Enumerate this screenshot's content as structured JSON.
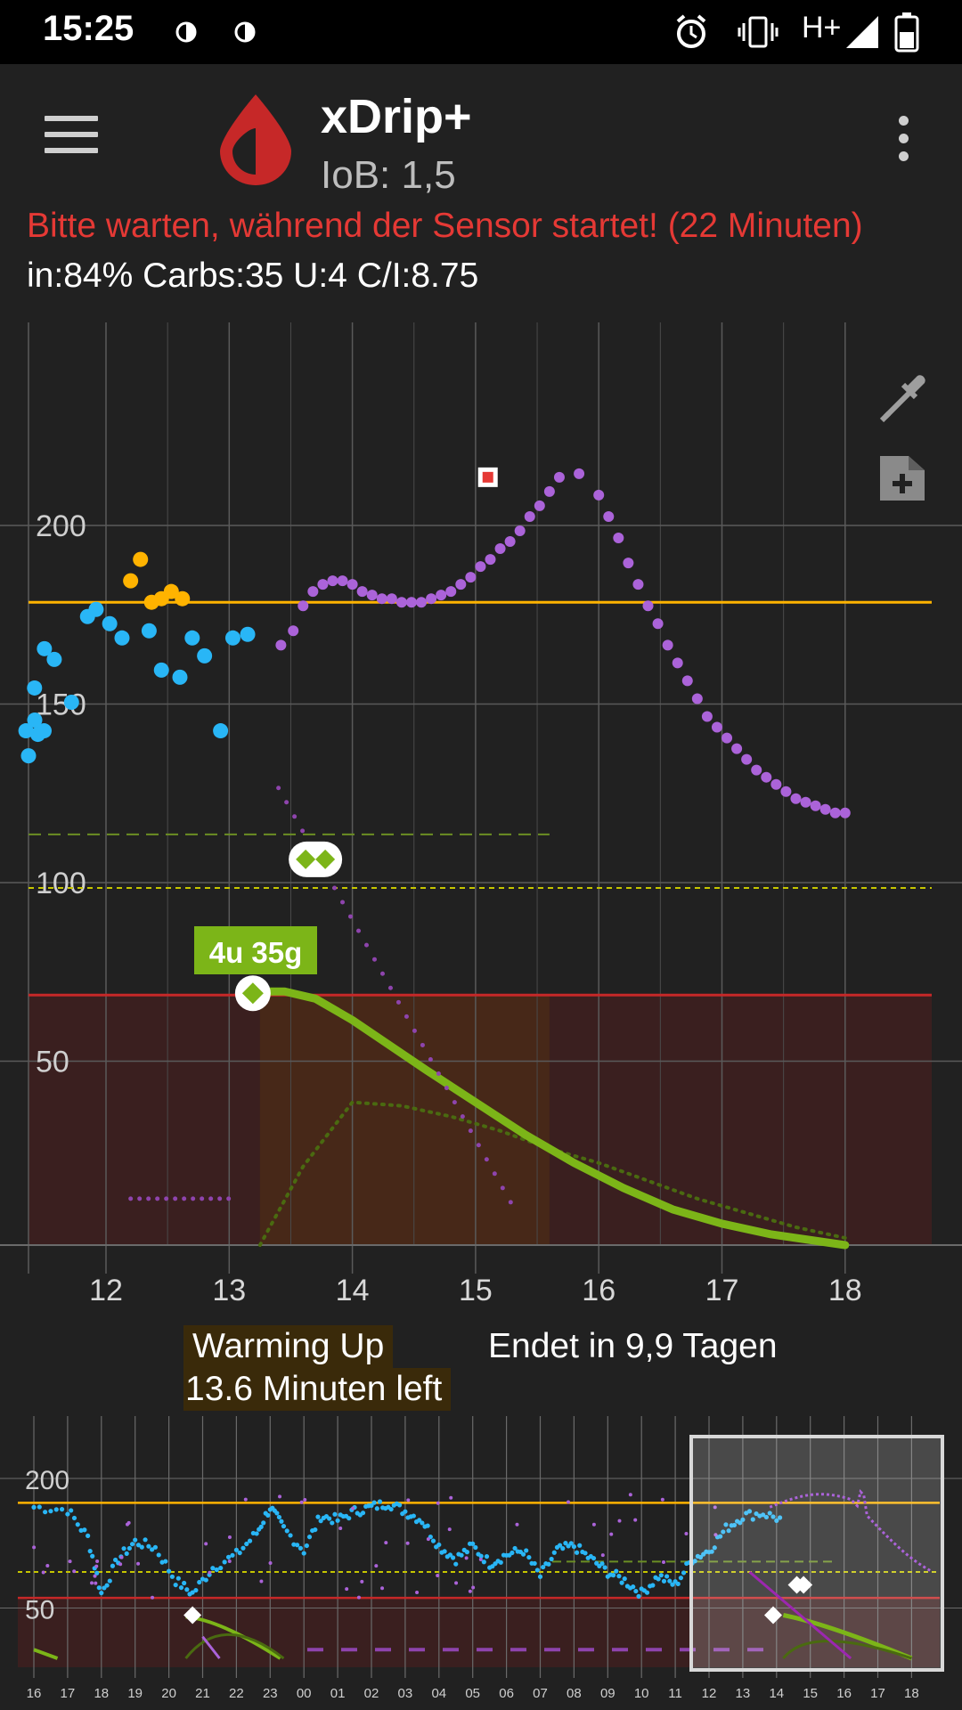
{
  "status_bar": {
    "time": "15:25",
    "icons": [
      "nightscout-drop-icon",
      "nightscout-drop-icon",
      "alarm-icon",
      "vibrate-icon",
      "network-h-plus-icon",
      "signal-icon",
      "battery-icon"
    ],
    "network": "H+"
  },
  "app_bar": {
    "title": "xDrip+",
    "subtitle": "IoB: 1,5",
    "logo_color": "#c62828"
  },
  "notice": "Bitte warten, während der Sensor startet! (22 Minuten)",
  "info_line": "in:84% Carbs:35 U:4 C/I:8.75",
  "treatment_label": "4u 35g",
  "status": {
    "warming_up": "Warming Up",
    "minutes_left": "13.6 Minuten left",
    "sensor_end": "Endet in 9,9 Tagen"
  },
  "colors": {
    "background": "#212121",
    "bg_point": "#29b6f6",
    "high_point": "#ffb300",
    "prediction": "#ab63d9",
    "insulin_curve": "#7cb518",
    "high_line": "#ffb300",
    "low_line": "#c62828",
    "target_line": "#c6c600",
    "notice_text": "#e53935"
  },
  "chart_data": [
    {
      "type": "scatter",
      "name": "main",
      "x_ticks": [
        "12",
        "13",
        "14",
        "15",
        "16",
        "17",
        "18"
      ],
      "y_ticks": [
        "50",
        "100",
        "150",
        "200"
      ],
      "xlim": [
        11.3,
        18.75
      ],
      "ylim": [
        0,
        258
      ],
      "high_line": 180,
      "low_line": 70,
      "target_line": 100,
      "dashed_green_line": 115,
      "series": [
        {
          "kind": "bg",
          "x": [
            11.0,
            11.1,
            11.15,
            11.25,
            11.35,
            11.42,
            11.5,
            11.58,
            11.72,
            11.85,
            11.92,
            12.03,
            12.13,
            12.35,
            12.45,
            12.6,
            12.7,
            12.8,
            12.93,
            13.03,
            13.15
          ],
          "y": [
            137,
            147,
            143,
            144,
            144,
            156,
            167,
            164,
            152,
            176,
            178,
            174,
            170,
            172,
            161,
            159,
            170,
            165,
            144,
            170,
            171
          ]
        },
        {
          "kind": "high",
          "x": [
            12.2,
            12.28,
            12.37,
            12.45,
            12.53,
            12.62
          ],
          "y": [
            186,
            192,
            180,
            181,
            183,
            181
          ]
        },
        {
          "kind": "prediction",
          "x": [
            13.42,
            13.52,
            13.6,
            13.68,
            13.76,
            13.84,
            13.92,
            14.0,
            14.08,
            14.16,
            14.24,
            14.32,
            14.4,
            14.48,
            14.56,
            14.64,
            14.72,
            14.8,
            14.88,
            14.96,
            15.04,
            15.12,
            15.2,
            15.28,
            15.36,
            15.44,
            15.52,
            15.6,
            15.68,
            15.84,
            16.0,
            16.08,
            16.16,
            16.24,
            16.32,
            16.4,
            16.48,
            16.56,
            16.64,
            16.72,
            16.8,
            16.88,
            16.96,
            17.04,
            17.12,
            17.2,
            17.28,
            17.36,
            17.44,
            17.52,
            17.6,
            17.68,
            17.76,
            17.84,
            17.92,
            18.0
          ],
          "y": [
            168,
            172,
            179,
            183,
            185,
            186,
            186,
            185,
            183,
            182,
            181,
            181,
            180,
            180,
            180,
            181,
            182,
            183,
            185,
            187,
            190,
            192,
            195,
            197,
            200,
            204,
            207,
            211,
            215,
            216,
            210,
            204,
            198,
            191,
            185,
            179,
            174,
            168,
            163,
            158,
            153,
            148,
            145,
            142,
            139,
            136,
            133,
            131,
            129,
            127,
            125,
            124,
            123,
            122,
            121,
            121
          ]
        },
        {
          "kind": "insulin_curve",
          "x": [
            13.25,
            13.45,
            13.7,
            14.0,
            14.3,
            14.6,
            15.0,
            15.4,
            15.8,
            16.2,
            16.6,
            17.0,
            17.4,
            17.8,
            18.0
          ],
          "y": [
            71,
            71,
            69,
            63,
            56,
            49,
            40,
            31,
            23,
            16,
            10,
            6,
            3,
            1,
            0
          ]
        },
        {
          "kind": "carb_curve",
          "x": [
            13.25,
            13.6,
            14.0,
            14.4,
            14.8,
            15.2,
            15.6,
            16.0,
            16.4,
            16.8,
            17.2,
            17.6,
            18.0
          ],
          "y": [
            0,
            22,
            40,
            39,
            36,
            32,
            27,
            23,
            18,
            13,
            9,
            5,
            2
          ]
        }
      ]
    },
    {
      "type": "scatter",
      "name": "preview",
      "x_ticks": [
        "16",
        "17",
        "18",
        "19",
        "20",
        "21",
        "22",
        "23",
        "00",
        "01",
        "02",
        "03",
        "04",
        "05",
        "06",
        "07",
        "08",
        "09",
        "10",
        "11",
        "12",
        "13",
        "14",
        "15",
        "16",
        "17",
        "18"
      ],
      "y_ticks": [
        "50",
        "200"
      ],
      "ylim": [
        0,
        230
      ]
    }
  ]
}
